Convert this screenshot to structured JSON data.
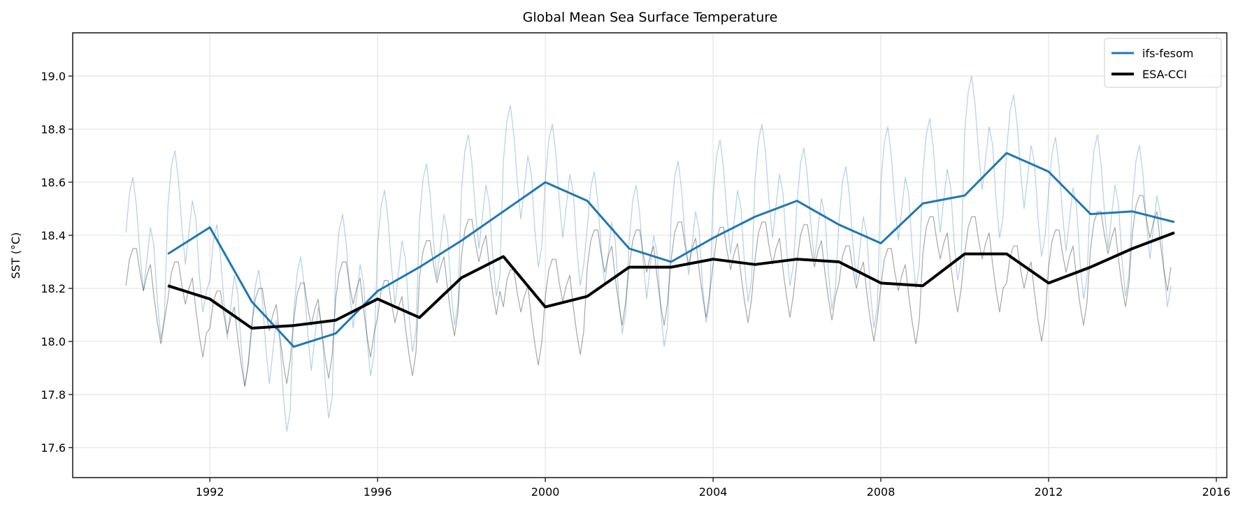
{
  "chart_data": {
    "type": "line",
    "title": "Global Mean Sea Surface Temperature",
    "xlabel": "",
    "ylabel": "SST (°C)",
    "xlim": [
      1988.73,
      2016.25
    ],
    "ylim": [
      17.487,
      19.163
    ],
    "x_ticks": [
      1992,
      1996,
      2000,
      2004,
      2008,
      2012,
      2016
    ],
    "y_ticks": [
      17.6,
      17.8,
      18.0,
      18.2,
      18.4,
      18.6,
      18.8,
      19.0
    ],
    "grid": true,
    "legend_position": "top-right",
    "annual": {
      "x": [
        1991,
        1992,
        1993,
        1994,
        1995,
        1996,
        1997,
        1998,
        1999,
        2000,
        2001,
        2002,
        2003,
        2004,
        2005,
        2006,
        2007,
        2008,
        2009,
        2010,
        2011,
        2012,
        2013,
        2014,
        2015
      ],
      "series": [
        {
          "name": "ifs-fesom",
          "color": "#1f77b4",
          "values": [
            18.33,
            18.43,
            18.15,
            17.98,
            18.03,
            18.19,
            18.28,
            18.38,
            18.49,
            18.6,
            18.53,
            18.35,
            18.3,
            18.39,
            18.47,
            18.53,
            18.44,
            18.37,
            18.52,
            18.55,
            18.71,
            18.64,
            18.48,
            18.49,
            18.45
          ]
        },
        {
          "name": "ESA-CCI",
          "color": "#000000",
          "values": [
            18.21,
            18.16,
            18.05,
            18.06,
            18.08,
            18.16,
            18.09,
            18.24,
            18.32,
            18.13,
            18.17,
            18.28,
            18.28,
            18.31,
            18.29,
            18.31,
            18.3,
            18.22,
            18.21,
            18.33,
            18.33,
            18.22,
            18.28,
            18.35,
            18.41
          ]
        }
      ]
    },
    "monthly": {
      "years": [
        1990,
        1991,
        1992,
        1993,
        1994,
        1995,
        1996,
        1997,
        1998,
        1999,
        2000,
        2001,
        2002,
        2003,
        2004,
        2005,
        2006,
        2007,
        2008,
        2009,
        2010,
        2011,
        2012,
        2013,
        2014
      ],
      "series": [
        {
          "color": "#1f77b4",
          "values": [
            [
              18.41,
              18.56,
              18.62,
              18.51,
              18.33,
              18.19,
              18.31,
              18.43,
              18.36,
              18.15,
              18.01,
              18.09
            ],
            [
              18.51,
              18.66,
              18.72,
              18.61,
              18.43,
              18.29,
              18.41,
              18.53,
              18.46,
              18.25,
              18.11,
              18.19
            ],
            [
              18.23,
              18.38,
              18.44,
              18.33,
              18.15,
              18.01,
              18.13,
              18.25,
              18.18,
              17.97,
              17.83,
              17.91
            ],
            [
              18.06,
              18.21,
              18.27,
              18.16,
              17.98,
              17.84,
              17.96,
              18.08,
              18.01,
              17.8,
              17.66,
              17.74
            ],
            [
              18.11,
              18.26,
              18.32,
              18.21,
              18.03,
              17.89,
              18.01,
              18.13,
              18.06,
              17.85,
              17.71,
              17.79
            ],
            [
              18.27,
              18.42,
              18.48,
              18.37,
              18.19,
              18.05,
              18.17,
              18.29,
              18.22,
              18.01,
              17.87,
              17.95
            ],
            [
              18.36,
              18.51,
              18.57,
              18.46,
              18.28,
              18.14,
              18.26,
              18.38,
              18.31,
              18.1,
              17.96,
              18.04
            ],
            [
              18.46,
              18.61,
              18.67,
              18.56,
              18.38,
              18.24,
              18.36,
              18.48,
              18.41,
              18.2,
              18.06,
              18.14
            ],
            [
              18.57,
              18.72,
              18.78,
              18.67,
              18.49,
              18.35,
              18.47,
              18.59,
              18.52,
              18.31,
              18.17,
              18.25
            ],
            [
              18.68,
              18.83,
              18.89,
              18.78,
              18.6,
              18.46,
              18.58,
              18.7,
              18.63,
              18.42,
              18.28,
              18.36
            ],
            [
              18.61,
              18.76,
              18.82,
              18.71,
              18.53,
              18.39,
              18.51,
              18.63,
              18.56,
              18.35,
              18.21,
              18.29
            ],
            [
              18.43,
              18.58,
              18.64,
              18.53,
              18.35,
              18.21,
              18.33,
              18.45,
              18.38,
              18.17,
              18.03,
              18.11
            ],
            [
              18.38,
              18.53,
              18.59,
              18.48,
              18.3,
              18.16,
              18.28,
              18.4,
              18.33,
              18.12,
              17.98,
              18.06
            ],
            [
              18.47,
              18.62,
              18.68,
              18.57,
              18.39,
              18.25,
              18.37,
              18.49,
              18.42,
              18.21,
              18.07,
              18.15
            ],
            [
              18.55,
              18.7,
              18.76,
              18.65,
              18.47,
              18.33,
              18.45,
              18.57,
              18.5,
              18.29,
              18.15,
              18.23
            ],
            [
              18.61,
              18.76,
              18.82,
              18.71,
              18.53,
              18.39,
              18.51,
              18.63,
              18.56,
              18.35,
              18.21,
              18.29
            ],
            [
              18.52,
              18.67,
              18.73,
              18.62,
              18.44,
              18.3,
              18.42,
              18.54,
              18.47,
              18.26,
              18.12,
              18.2
            ],
            [
              18.45,
              18.6,
              18.66,
              18.55,
              18.37,
              18.23,
              18.35,
              18.47,
              18.4,
              18.19,
              18.05,
              18.13
            ],
            [
              18.6,
              18.75,
              18.81,
              18.7,
              18.52,
              18.38,
              18.5,
              18.62,
              18.55,
              18.34,
              18.2,
              18.28
            ],
            [
              18.63,
              18.78,
              18.84,
              18.73,
              18.55,
              18.41,
              18.53,
              18.65,
              18.58,
              18.37,
              18.23,
              18.31
            ],
            [
              18.79,
              18.94,
              19.0,
              18.89,
              18.71,
              18.57,
              18.69,
              18.81,
              18.74,
              18.53,
              18.39,
              18.47
            ],
            [
              18.72,
              18.87,
              18.93,
              18.82,
              18.64,
              18.5,
              18.62,
              18.74,
              18.67,
              18.46,
              18.32,
              18.4
            ],
            [
              18.56,
              18.71,
              18.77,
              18.66,
              18.48,
              18.34,
              18.46,
              18.58,
              18.51,
              18.3,
              18.16,
              18.24
            ],
            [
              18.57,
              18.72,
              18.78,
              18.67,
              18.49,
              18.35,
              18.47,
              18.59,
              18.52,
              18.31,
              18.17,
              18.25
            ],
            [
              18.53,
              18.68,
              18.74,
              18.63,
              18.45,
              18.31,
              18.43,
              18.55,
              18.48,
              18.27,
              18.13,
              18.21
            ]
          ]
        },
        {
          "color": "#000000",
          "values": [
            [
              18.21,
              18.31,
              18.35,
              18.35,
              18.26,
              18.19,
              18.25,
              18.29,
              18.17,
              18.07,
              17.99,
              18.08
            ],
            [
              18.16,
              18.26,
              18.3,
              18.3,
              18.21,
              18.14,
              18.2,
              18.24,
              18.12,
              18.02,
              17.94,
              18.03
            ],
            [
              18.05,
              18.15,
              18.19,
              18.19,
              18.1,
              18.03,
              18.09,
              18.13,
              18.01,
              17.91,
              17.83,
              17.92
            ],
            [
              18.06,
              18.16,
              18.2,
              18.2,
              18.11,
              18.04,
              18.1,
              18.14,
              18.02,
              17.92,
              17.84,
              17.93
            ],
            [
              18.08,
              18.18,
              18.22,
              18.22,
              18.13,
              18.06,
              18.12,
              18.16,
              18.04,
              17.94,
              17.86,
              17.95
            ],
            [
              18.16,
              18.26,
              18.3,
              18.3,
              18.21,
              18.14,
              18.2,
              18.24,
              18.12,
              18.02,
              17.94,
              18.03
            ],
            [
              18.09,
              18.19,
              18.23,
              18.23,
              18.14,
              18.07,
              18.13,
              18.17,
              18.05,
              17.95,
              17.87,
              17.96
            ],
            [
              18.24,
              18.34,
              18.38,
              18.38,
              18.29,
              18.22,
              18.28,
              18.32,
              18.2,
              18.1,
              18.02,
              18.11
            ],
            [
              18.32,
              18.42,
              18.46,
              18.46,
              18.37,
              18.3,
              18.36,
              18.4,
              18.28,
              18.18,
              18.1,
              18.19
            ],
            [
              18.13,
              18.23,
              18.27,
              18.27,
              18.18,
              18.11,
              18.17,
              18.21,
              18.09,
              17.99,
              17.91,
              18.0
            ],
            [
              18.17,
              18.27,
              18.31,
              18.31,
              18.22,
              18.15,
              18.21,
              18.25,
              18.13,
              18.03,
              17.95,
              18.04
            ],
            [
              18.28,
              18.38,
              18.42,
              18.42,
              18.33,
              18.26,
              18.32,
              18.36,
              18.24,
              18.14,
              18.06,
              18.15
            ],
            [
              18.28,
              18.38,
              18.42,
              18.42,
              18.33,
              18.26,
              18.32,
              18.36,
              18.24,
              18.14,
              18.06,
              18.15
            ],
            [
              18.31,
              18.41,
              18.45,
              18.45,
              18.36,
              18.29,
              18.35,
              18.39,
              18.27,
              18.17,
              18.09,
              18.18
            ],
            [
              18.29,
              18.39,
              18.43,
              18.43,
              18.34,
              18.27,
              18.33,
              18.37,
              18.25,
              18.15,
              18.07,
              18.16
            ],
            [
              18.31,
              18.41,
              18.45,
              18.45,
              18.36,
              18.29,
              18.35,
              18.39,
              18.27,
              18.17,
              18.09,
              18.18
            ],
            [
              18.3,
              18.4,
              18.44,
              18.44,
              18.35,
              18.28,
              18.34,
              18.38,
              18.26,
              18.16,
              18.08,
              18.17
            ],
            [
              18.22,
              18.32,
              18.36,
              18.36,
              18.27,
              18.2,
              18.26,
              18.3,
              18.18,
              18.08,
              18.0,
              18.09
            ],
            [
              18.21,
              18.31,
              18.35,
              18.35,
              18.26,
              18.19,
              18.25,
              18.29,
              18.17,
              18.07,
              17.99,
              18.08
            ],
            [
              18.33,
              18.43,
              18.47,
              18.47,
              18.38,
              18.31,
              18.37,
              18.41,
              18.29,
              18.19,
              18.11,
              18.2
            ],
            [
              18.33,
              18.43,
              18.47,
              18.47,
              18.38,
              18.31,
              18.37,
              18.41,
              18.29,
              18.19,
              18.11,
              18.2
            ],
            [
              18.22,
              18.32,
              18.36,
              18.36,
              18.27,
              18.2,
              18.26,
              18.3,
              18.18,
              18.08,
              18.0,
              18.09
            ],
            [
              18.28,
              18.38,
              18.42,
              18.42,
              18.33,
              18.26,
              18.32,
              18.36,
              18.24,
              18.14,
              18.06,
              18.15
            ],
            [
              18.35,
              18.45,
              18.49,
              18.49,
              18.4,
              18.33,
              18.39,
              18.43,
              18.31,
              18.21,
              18.13,
              18.22
            ],
            [
              18.41,
              18.51,
              18.55,
              18.55,
              18.46,
              18.39,
              18.45,
              18.49,
              18.37,
              18.27,
              18.19,
              18.28
            ]
          ]
        }
      ]
    }
  }
}
